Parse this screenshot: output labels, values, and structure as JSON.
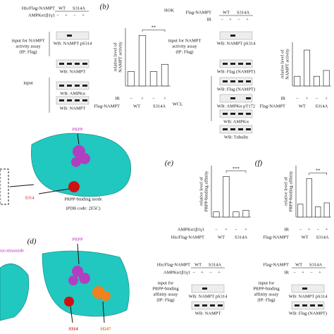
{
  "panel_a": {
    "construct_label": "His/Flag-NAMPT",
    "groups": [
      "WT",
      "S314A"
    ],
    "treatment_label": "AMPKα1β1γ1",
    "signs": [
      "−",
      "+",
      "−",
      "+"
    ],
    "assay_label": [
      "input for NAMPT",
      "activity assay",
      "(IP: Flag)"
    ],
    "input_label": "input",
    "blots": [
      "WB: NAMPT pS314",
      "WB: NAMPT",
      "WB: AMPKα",
      "WB: NAMPT"
    ]
  },
  "panel_b": {
    "letter": "(b)",
    "cell_line": "HOK",
    "construct_label": "Flag-NAMPT",
    "groups": [
      "WT",
      "S314A"
    ],
    "treatment_label": "IR",
    "signs": [
      "−",
      "+",
      "−",
      "+"
    ],
    "assay_label": [
      "input for NAMPT",
      "activity assay",
      "(IP: Flag)"
    ],
    "wcl_label": "WCL",
    "blots": [
      "WB: NAMPT pS314",
      "WB: Flag (NAMPT)",
      "WB: Flag (NAMPT)",
      "WB: AMPKα pT172",
      "WB: AMPKα",
      "WB: Tubulin"
    ]
  },
  "structure_c": {
    "ligand_label": "PRPP",
    "residue_label": "S314",
    "mode_label": "PRPP-binding mode",
    "pdb_label": "(PDB code: 2E5C)"
  },
  "structure_d": {
    "letter": "(d)",
    "ligand_label": "PRPP",
    "other_ligand_label": "nicotinamide",
    "residue_labels": [
      "S314",
      "H247"
    ]
  },
  "panel_e": {
    "letter": "(e)",
    "construct_label": "His/Flag-NAMPT",
    "groups": [
      "WT",
      "S314A"
    ],
    "treatment_label": "AMPKα1β1γ1",
    "signs": [
      "−",
      "+",
      "−",
      "+"
    ],
    "assay_label": [
      "input for",
      "PRPP-binding",
      "affinity assay",
      "(IP: Flag)"
    ],
    "blots": [
      "WB: NAMPT pS314",
      "WB: NAMPT"
    ]
  },
  "panel_f": {
    "letter": "(f)",
    "construct_label": "Flag-NAMPT",
    "groups": [
      "WT",
      "S314A"
    ],
    "treatment_label": "IR",
    "signs": [
      "−",
      "+",
      "−",
      "+"
    ],
    "assay_label": [
      "input for",
      "PRPP-binding",
      "affinity assay",
      "(IP: Flag)"
    ],
    "blots": [
      "WB: NAMPT pS314",
      "WB: Flag (NAMPT)"
    ]
  },
  "charts": [
    {
      "y_label": [
        "relative level of",
        "NAMPT activity"
      ],
      "values": [
        1,
        3.5,
        1,
        1.5
      ],
      "ylim": [
        0,
        4
      ],
      "significance": "**",
      "treatment_label": "IR",
      "signs": [
        "−",
        "+",
        "−",
        "+"
      ],
      "construct_label": "Flag-NAMPT",
      "groups": [
        "WT",
        "S314A"
      ]
    },
    {
      "y_label": [
        "relative level of",
        "NAMPT activity"
      ],
      "values": [
        1,
        3.7,
        1,
        1.6
      ],
      "ylim": [
        0,
        4.5
      ],
      "significance": null,
      "treatment_label": "IR",
      "signs": [
        "−",
        "+",
        "−",
        "+"
      ],
      "construct_label": "Flag-NAMPT",
      "groups": [
        "WT",
        "S314A"
      ]
    },
    {
      "y_label": [
        "relative level of",
        "PRPP-binding affinity"
      ],
      "values": [
        1,
        7.9,
        1,
        1.3
      ],
      "ylim": [
        0,
        10
      ],
      "significance": "***",
      "treatment_label": "AMPKα1β1γ1",
      "signs": [
        "−",
        "+",
        "−",
        "+"
      ],
      "construct_label": "His/Flag-NAMPT",
      "groups": [
        "WT",
        "S314A"
      ]
    },
    {
      "y_label": [
        "relative level of",
        "PRPP-binding affinity"
      ],
      "values": [
        1,
        3.0,
        0.8,
        1.1
      ],
      "ylim": [
        0,
        4
      ],
      "significance": "**",
      "treatment_label": "IR",
      "signs": [
        "−",
        "+",
        "−",
        "+"
      ],
      "construct_label": "Flag-NAMPT",
      "groups": [
        "WT",
        "S314A"
      ]
    }
  ]
}
